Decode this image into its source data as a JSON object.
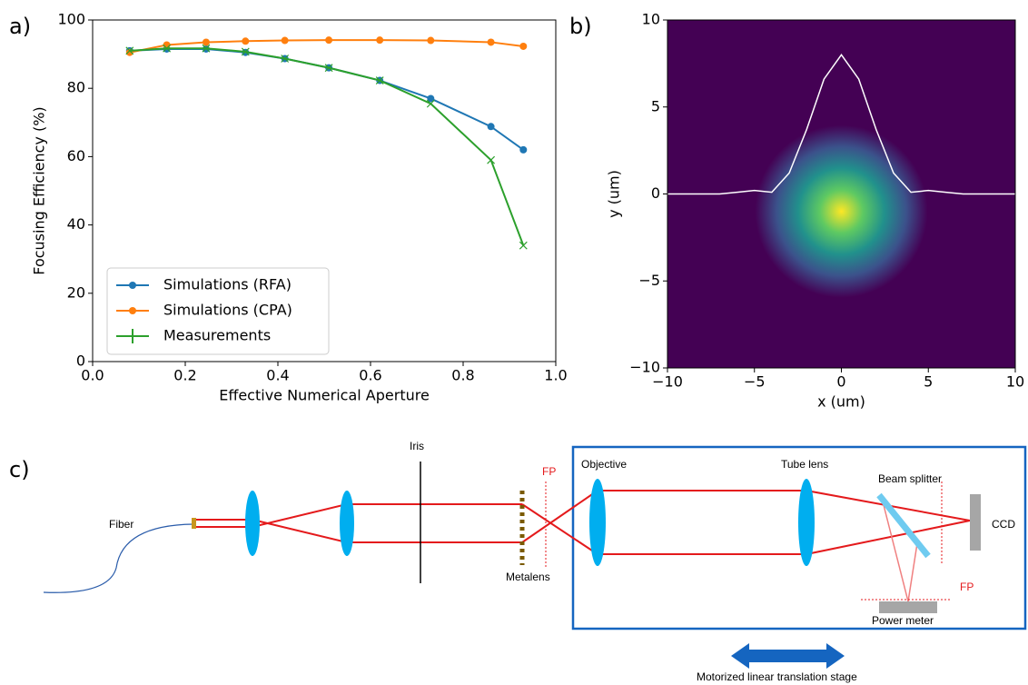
{
  "chart_data": [
    {
      "type": "line",
      "panel_label": "a)",
      "x_label": "Effective Numerical Aperture",
      "y_label": "Focusing Efficiency (%)",
      "x": [
        0.08,
        0.16,
        0.245,
        0.33,
        0.415,
        0.51,
        0.62,
        0.73,
        0.86,
        0.93
      ],
      "series": [
        {
          "name": "Simulations (RFA)",
          "color": "#1f77b4",
          "marker": "o",
          "values": [
            91,
            91.5,
            91.5,
            90.5,
            88.7,
            86,
            82.3,
            77,
            68.8,
            62
          ]
        },
        {
          "name": "Simulations (CPA)",
          "color": "#ff7f0e",
          "marker": "o",
          "values": [
            90.5,
            92.7,
            93.5,
            93.8,
            94,
            94.1,
            94.1,
            94,
            93.5,
            92.3
          ]
        },
        {
          "name": "Measurements",
          "color": "#2ca02c",
          "marker": "x",
          "values": [
            91,
            91.7,
            91.7,
            90.7,
            88.7,
            86,
            82.3,
            75.5,
            59,
            34
          ]
        }
      ],
      "xlim": [
        0,
        1
      ],
      "ylim": [
        0,
        100
      ],
      "xticks": [
        {
          "value": 0,
          "label": "0.0"
        },
        0.2,
        0.4,
        0.6,
        0.8,
        {
          "value": 1,
          "label": "1.0"
        }
      ],
      "yticks": [
        0,
        20,
        40,
        60,
        80,
        100
      ],
      "legend": "lower left"
    },
    {
      "type": "profile",
      "panel_label": "b)",
      "x_label": "x (um)",
      "y_label": "y (um)",
      "x": [
        -10,
        -9,
        -8,
        -7,
        -6,
        -5,
        -4,
        -3,
        -2,
        -1,
        0,
        1,
        2,
        3,
        4,
        5,
        6,
        7,
        8,
        9,
        10
      ],
      "series": [
        {
          "color": "#ffffff",
          "values": [
            0,
            0,
            0,
            0,
            0.1,
            0.2,
            0.1,
            1.2,
            3.7,
            6.6,
            8,
            6.6,
            3.7,
            1.2,
            0.1,
            0.2,
            0.1,
            0,
            0,
            0,
            0
          ]
        }
      ],
      "xlim": [
        -10,
        10
      ],
      "ylim": [
        -10,
        10
      ],
      "xticks": [
        {
          "value": -10,
          "label": "−10"
        },
        {
          "value": -5,
          "label": "−5"
        },
        0,
        5,
        10
      ],
      "yticks": [
        {
          "value": -10,
          "label": "−10"
        },
        {
          "value": -5,
          "label": "−5"
        },
        0,
        5,
        10
      ]
    }
  ],
  "diagram": {
    "panel_label": "c)",
    "labels": {
      "fiber": "Fiber",
      "iris": "Iris",
      "fp1": "FP",
      "objective": "Objective",
      "metalens": "Metalens",
      "tube_lens": "Tube lens",
      "beam_splitter": "Beam splitter",
      "ccd": "CCD",
      "fp2": "FP",
      "power_meter": "Power meter",
      "stage": "Motorized linear translation stage"
    }
  }
}
